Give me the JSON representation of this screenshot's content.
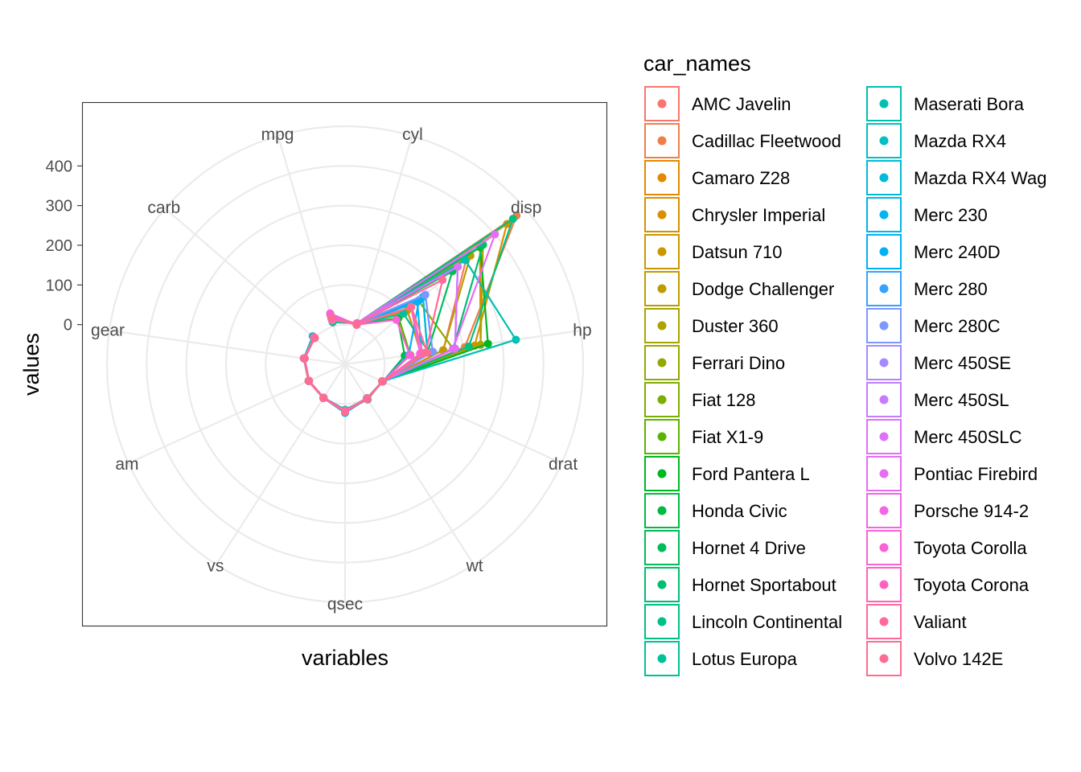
{
  "chart_data": {
    "type": "radar",
    "xlabel": "variables",
    "ylabel": "values",
    "variables": [
      "mpg",
      "cyl",
      "disp",
      "hp",
      "drat",
      "wt",
      "qsec",
      "vs",
      "am",
      "gear",
      "carb"
    ],
    "yticks": [
      0,
      100,
      200,
      300,
      400
    ],
    "ylim": [
      -100,
      500
    ],
    "legend": {
      "title": "car_names",
      "position": "right",
      "columns": 2
    },
    "grid": true,
    "series": [
      {
        "name": "AMC Javelin",
        "color": "#F8766D",
        "values": [
          15.2,
          8,
          304,
          150,
          3.15,
          3.435,
          17.3,
          0,
          0,
          3,
          2
        ]
      },
      {
        "name": "Cadillac Fleetwood",
        "color": "#EF7F49",
        "values": [
          10.4,
          8,
          472,
          205,
          2.93,
          5.25,
          17.98,
          0,
          0,
          3,
          4
        ]
      },
      {
        "name": "Camaro Z28",
        "color": "#E38900",
        "values": [
          13.3,
          8,
          350,
          245,
          3.73,
          3.84,
          15.41,
          0,
          0,
          3,
          4
        ]
      },
      {
        "name": "Chrysler Imperial",
        "color": "#D89000",
        "values": [
          14.7,
          8,
          440,
          230,
          3.23,
          5.345,
          17.42,
          0,
          0,
          3,
          4
        ]
      },
      {
        "name": "Datsun 710",
        "color": "#CB9700",
        "values": [
          22.8,
          4,
          108,
          93,
          3.85,
          2.32,
          18.61,
          1,
          1,
          4,
          1
        ]
      },
      {
        "name": "Dodge Challenger",
        "color": "#BB9D00",
        "values": [
          15.5,
          8,
          318,
          150,
          2.76,
          3.52,
          16.87,
          0,
          0,
          3,
          2
        ]
      },
      {
        "name": "Duster 360",
        "color": "#A9A400",
        "values": [
          14.3,
          8,
          360,
          245,
          3.21,
          3.57,
          15.84,
          0,
          0,
          3,
          4
        ]
      },
      {
        "name": "Ferrari Dino",
        "color": "#94A900",
        "values": [
          19.7,
          6,
          145,
          175,
          3.62,
          2.77,
          15.5,
          0,
          1,
          5,
          6
        ]
      },
      {
        "name": "Fiat 128",
        "color": "#7CAE00",
        "values": [
          32.4,
          4,
          78.7,
          66,
          4.08,
          2.2,
          19.47,
          1,
          1,
          4,
          1
        ]
      },
      {
        "name": "Fiat X1-9",
        "color": "#5BB300",
        "values": [
          27.3,
          4,
          79,
          66,
          4.08,
          1.935,
          18.9,
          1,
          1,
          4,
          1
        ]
      },
      {
        "name": "Ford Pantera L",
        "color": "#00B81F",
        "values": [
          15.8,
          8,
          351,
          264,
          4.22,
          3.17,
          14.5,
          0,
          1,
          5,
          4
        ]
      },
      {
        "name": "Honda Civic",
        "color": "#00BA42",
        "values": [
          30.4,
          4,
          75.7,
          52,
          4.93,
          1.615,
          18.52,
          1,
          1,
          4,
          2
        ]
      },
      {
        "name": "Hornet 4 Drive",
        "color": "#00BC59",
        "values": [
          21.4,
          6,
          258,
          110,
          3.08,
          3.215,
          19.44,
          1,
          0,
          3,
          1
        ]
      },
      {
        "name": "Hornet Sportabout",
        "color": "#00BE70",
        "values": [
          18.7,
          8,
          360,
          175,
          3.15,
          3.44,
          17.02,
          0,
          0,
          3,
          2
        ]
      },
      {
        "name": "Lincoln Continental",
        "color": "#00C085",
        "values": [
          10.4,
          8,
          460,
          215,
          3.0,
          5.424,
          17.82,
          0,
          0,
          3,
          4
        ]
      },
      {
        "name": "Lotus Europa",
        "color": "#00C19A",
        "values": [
          30.4,
          4,
          95.1,
          113,
          3.77,
          1.513,
          16.9,
          1,
          1,
          5,
          2
        ]
      },
      {
        "name": "Maserati Bora",
        "color": "#00C0B1",
        "values": [
          15.0,
          8,
          301,
          335,
          3.54,
          3.57,
          14.6,
          0,
          1,
          5,
          8
        ]
      },
      {
        "name": "Mazda RX4",
        "color": "#00BFC4",
        "values": [
          21.0,
          6,
          160,
          110,
          3.9,
          2.62,
          16.46,
          0,
          1,
          4,
          4
        ]
      },
      {
        "name": "Mazda RX4 Wag",
        "color": "#00BBD8",
        "values": [
          21.0,
          6,
          160,
          110,
          3.9,
          2.875,
          17.02,
          0,
          1,
          4,
          4
        ]
      },
      {
        "name": "Merc 230",
        "color": "#00B6EB",
        "values": [
          22.8,
          4,
          140.8,
          95,
          3.92,
          3.15,
          22.9,
          1,
          0,
          4,
          2
        ]
      },
      {
        "name": "Merc 240D",
        "color": "#00B0F6",
        "values": [
          24.4,
          4,
          146.7,
          62,
          3.69,
          3.19,
          20.0,
          1,
          0,
          4,
          2
        ]
      },
      {
        "name": "Merc 280",
        "color": "#35A2FF",
        "values": [
          19.2,
          6,
          167.6,
          123,
          3.92,
          3.44,
          18.3,
          1,
          0,
          4,
          4
        ]
      },
      {
        "name": "Merc 280C",
        "color": "#7E96FF",
        "values": [
          17.8,
          6,
          167.6,
          123,
          3.92,
          3.44,
          18.9,
          1,
          0,
          4,
          4
        ]
      },
      {
        "name": "Merc 450SE",
        "color": "#A58AFF",
        "values": [
          16.4,
          8,
          275.8,
          180,
          3.07,
          4.07,
          17.4,
          0,
          0,
          3,
          3
        ]
      },
      {
        "name": "Merc 450SL",
        "color": "#C77CFF",
        "values": [
          17.3,
          8,
          275.8,
          180,
          3.07,
          3.73,
          17.6,
          0,
          0,
          3,
          3
        ]
      },
      {
        "name": "Merc 450SLC",
        "color": "#DC71FA",
        "values": [
          15.2,
          8,
          275.8,
          180,
          3.07,
          3.78,
          18.0,
          0,
          0,
          3,
          3
        ]
      },
      {
        "name": "Pontiac Firebird",
        "color": "#E76BF3",
        "values": [
          19.2,
          8,
          400,
          175,
          3.08,
          3.845,
          17.05,
          0,
          0,
          3,
          2
        ]
      },
      {
        "name": "Porsche 914-2",
        "color": "#F365E6",
        "values": [
          26.0,
          4,
          120.3,
          91,
          4.43,
          2.14,
          16.7,
          0,
          1,
          5,
          2
        ]
      },
      {
        "name": "Toyota Corolla",
        "color": "#FC61D5",
        "values": [
          33.9,
          4,
          71.1,
          65,
          4.22,
          1.835,
          19.9,
          1,
          1,
          4,
          1
        ]
      },
      {
        "name": "Toyota Corona",
        "color": "#FF62BC",
        "values": [
          21.5,
          4,
          120.1,
          97,
          3.7,
          2.465,
          20.01,
          1,
          0,
          3,
          1
        ]
      },
      {
        "name": "Valiant",
        "color": "#FF6A98",
        "values": [
          18.1,
          6,
          225,
          105,
          2.76,
          3.46,
          20.22,
          1,
          0,
          3,
          1
        ]
      },
      {
        "name": "Volvo 142E",
        "color": "#FF6C91",
        "values": [
          21.4,
          4,
          121,
          109,
          4.11,
          2.78,
          18.6,
          1,
          1,
          4,
          2
        ]
      }
    ]
  }
}
